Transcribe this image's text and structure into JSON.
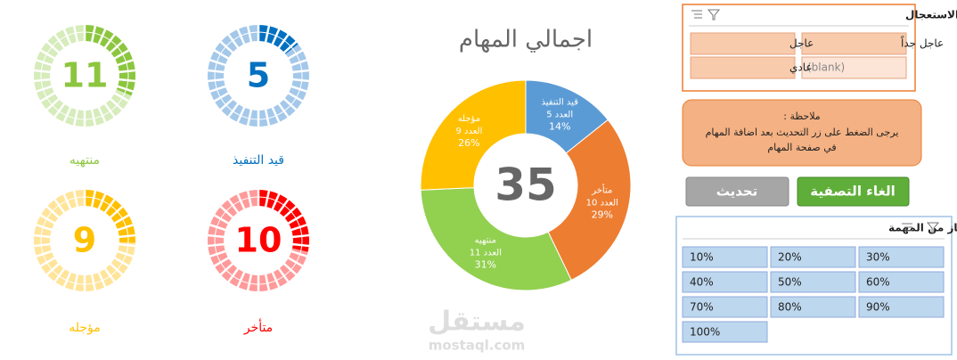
{
  "chart_data": {
    "type": "donut",
    "title": "اجمالي المهام",
    "total": 35,
    "categories": [
      "قيد التنفيذ",
      "متأخر",
      "منتهيه",
      "مؤجله"
    ],
    "values": [
      5,
      10,
      11,
      9
    ],
    "value_labels": [
      "العدد 5",
      "العدد 10",
      "العدد 11",
      "العدد 9"
    ],
    "percent_labels": [
      "14%",
      "29%",
      "31%",
      "26%"
    ],
    "colors": [
      "#5b9bd5",
      "#ed7d31",
      "#92d050",
      "#ffc000"
    ]
  },
  "gauges": [
    {
      "label": "منتهيه",
      "value": 11,
      "color": "#8cc63f",
      "light": "#d6ecbb"
    },
    {
      "label": "قيد التنفيذ",
      "value": 5,
      "color": "#0070c0",
      "light": "#a4c8ea"
    },
    {
      "label": "مؤجله",
      "value": 9,
      "color": "#ffc000",
      "light": "#ffe49a"
    },
    {
      "label": "متأخر",
      "value": 10,
      "color": "#ff0000",
      "light": "#ff9a9a"
    }
  ],
  "slicer_urgency": {
    "title": "تصفية المهام بحسب درجة الاستعجال",
    "items": [
      "عاجل جداً",
      "عاجل",
      "(blank)",
      "عادي"
    ]
  },
  "note": {
    "title": "ملاحظة :",
    "lines": [
      "يرجى الضغط على زر التحديث بعد اضافة المهام",
      "في صفحة المهام"
    ]
  },
  "buttons": [
    "الغاء التصفية",
    "تحديث"
  ],
  "slicer_progress": {
    "title": "تصفية المهام بحسب نسبة الانجاز من المهمة",
    "items": [
      "10%",
      "20%",
      "30%",
      "40%",
      "50%",
      "60%",
      "70%",
      "80%",
      "90%",
      "100%"
    ]
  },
  "watermark": {
    "logo": "مستقل",
    "site": "mostaql.com"
  }
}
